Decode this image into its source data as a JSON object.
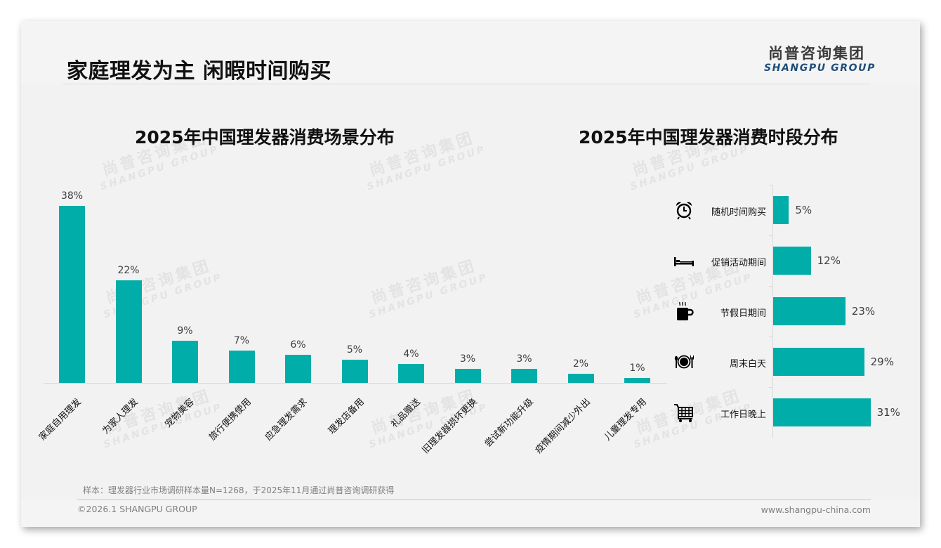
{
  "header": {
    "title": "家庭理发为主 闲暇时间购买",
    "logo_cn": "尚普咨询集团",
    "logo_en": "SHANGPU GROUP"
  },
  "watermark": {
    "cn": "尚普咨询集团",
    "en": "SHANGPU GROUP"
  },
  "colors": {
    "bar": "#00ada8",
    "logo_en": "#1f4e79",
    "footer_rule": "#b4c7dc"
  },
  "chart_data": [
    {
      "type": "bar",
      "title": "2025年中国理发器消费场景分布",
      "xlabel": "",
      "ylabel": "",
      "categories": [
        "家庭自用理发",
        "为家人理发",
        "宠物美容",
        "旅行便携使用",
        "应急理发需求",
        "理发店备用",
        "礼品赠送",
        "旧理发器损坏更换",
        "尝试新功能升级",
        "疫情期间减少外出",
        "儿童理发专用"
      ],
      "values": [
        38,
        22,
        9,
        7,
        6,
        5,
        4,
        3,
        3,
        2,
        1
      ],
      "value_labels": [
        "38%",
        "22%",
        "9%",
        "7%",
        "6%",
        "5%",
        "4%",
        "3%",
        "3%",
        "2%",
        "1%"
      ],
      "unit": "%",
      "grid": false,
      "legend": null
    },
    {
      "type": "bar",
      "orientation": "horizontal",
      "title": "2025年中国理发器消费时段分布",
      "categories": [
        "随机时间购买",
        "促销活动期间",
        "节假日期间",
        "周末白天",
        "工作日晚上"
      ],
      "values": [
        5,
        12,
        23,
        29,
        31
      ],
      "value_labels": [
        "5%",
        "12%",
        "23%",
        "29%",
        "31%"
      ],
      "icons": [
        "alarm-clock-icon",
        "bed-icon",
        "hot-coffee-mug-icon",
        "plate-cutlery-icon",
        "shopping-cart-icon"
      ],
      "unit": "%",
      "grid": false,
      "legend": null
    }
  ],
  "footer": {
    "note": "样本：理发器行业市场调研样本量N=1268，于2025年11月通过尚普咨询调研获得",
    "copyright": "©2026.1 SHANGPU GROUP",
    "website": "www.shangpu-china.com"
  }
}
